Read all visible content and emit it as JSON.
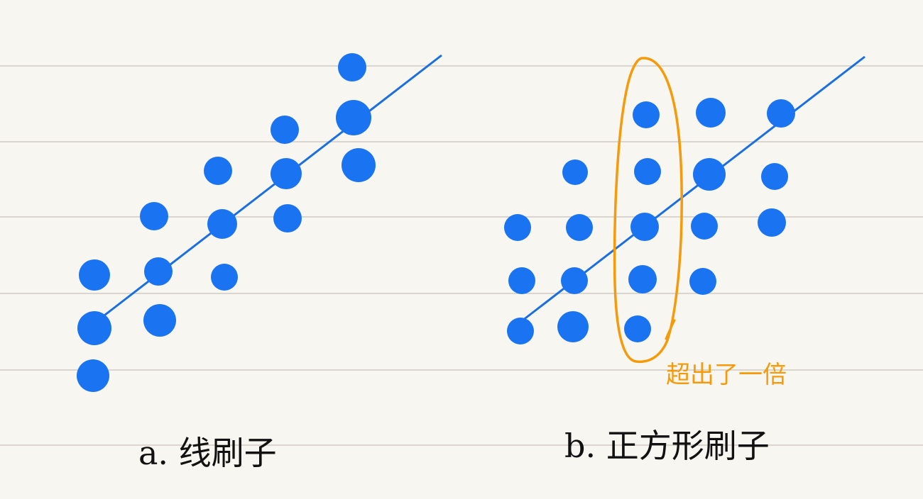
{
  "colors": {
    "paper": "#f8f6f1",
    "rule": "#cfcac2",
    "dot": "#1a73f0",
    "line": "#1a6fe0",
    "highlight": "#f59a0a",
    "ink": "#111111"
  },
  "diagrams": [
    {
      "id": "a",
      "caption": "a. 线刷子"
    },
    {
      "id": "b",
      "caption": "b. 正方形刷子"
    }
  ],
  "annotation": {
    "text": "超出了一倍"
  }
}
